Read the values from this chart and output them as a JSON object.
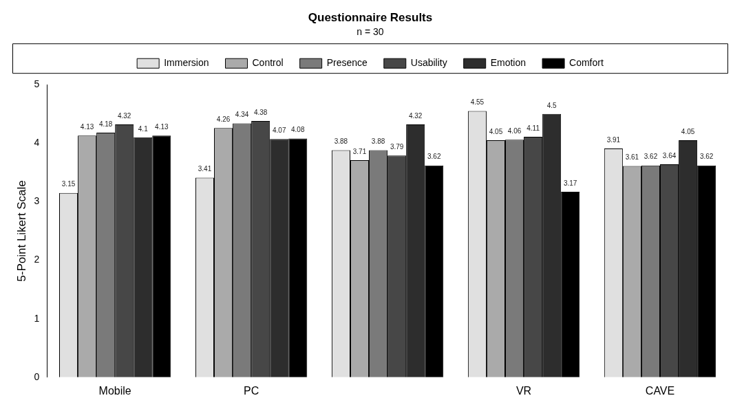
{
  "chart_data": {
    "type": "bar",
    "title": "Questionnaire Results",
    "subtitle": "n = 30",
    "ylabel": "5-Point Likert Scale",
    "categories": [
      "Mobile",
      "PC",
      null,
      "VR",
      "CAVE"
    ],
    "series": [
      {
        "name": "Immersion",
        "color": "#e0e0e0",
        "values": [
          3.15,
          3.41,
          3.88,
          4.55,
          3.91
        ]
      },
      {
        "name": "Control",
        "color": "#aaaaaa",
        "values": [
          4.13,
          4.26,
          3.71,
          4.05,
          3.61
        ]
      },
      {
        "name": "Presence",
        "color": "#7a7a7a",
        "values": [
          4.18,
          4.34,
          3.88,
          4.06,
          3.62
        ]
      },
      {
        "name": "Usability",
        "color": "#474747",
        "values": [
          4.32,
          4.38,
          3.79,
          4.11,
          3.64
        ]
      },
      {
        "name": "Emotion",
        "color": "#2d2d2d",
        "values": [
          4.1,
          4.07,
          4.32,
          4.5,
          4.05
        ]
      },
      {
        "name": "Comfort",
        "color": "#000000",
        "values": [
          4.13,
          4.08,
          3.62,
          3.17,
          3.62
        ]
      }
    ],
    "ylim": [
      0,
      5
    ],
    "yticks": [
      0,
      1,
      2,
      3,
      4,
      5
    ],
    "grid": false,
    "legend": "top",
    "data_labels": true
  }
}
